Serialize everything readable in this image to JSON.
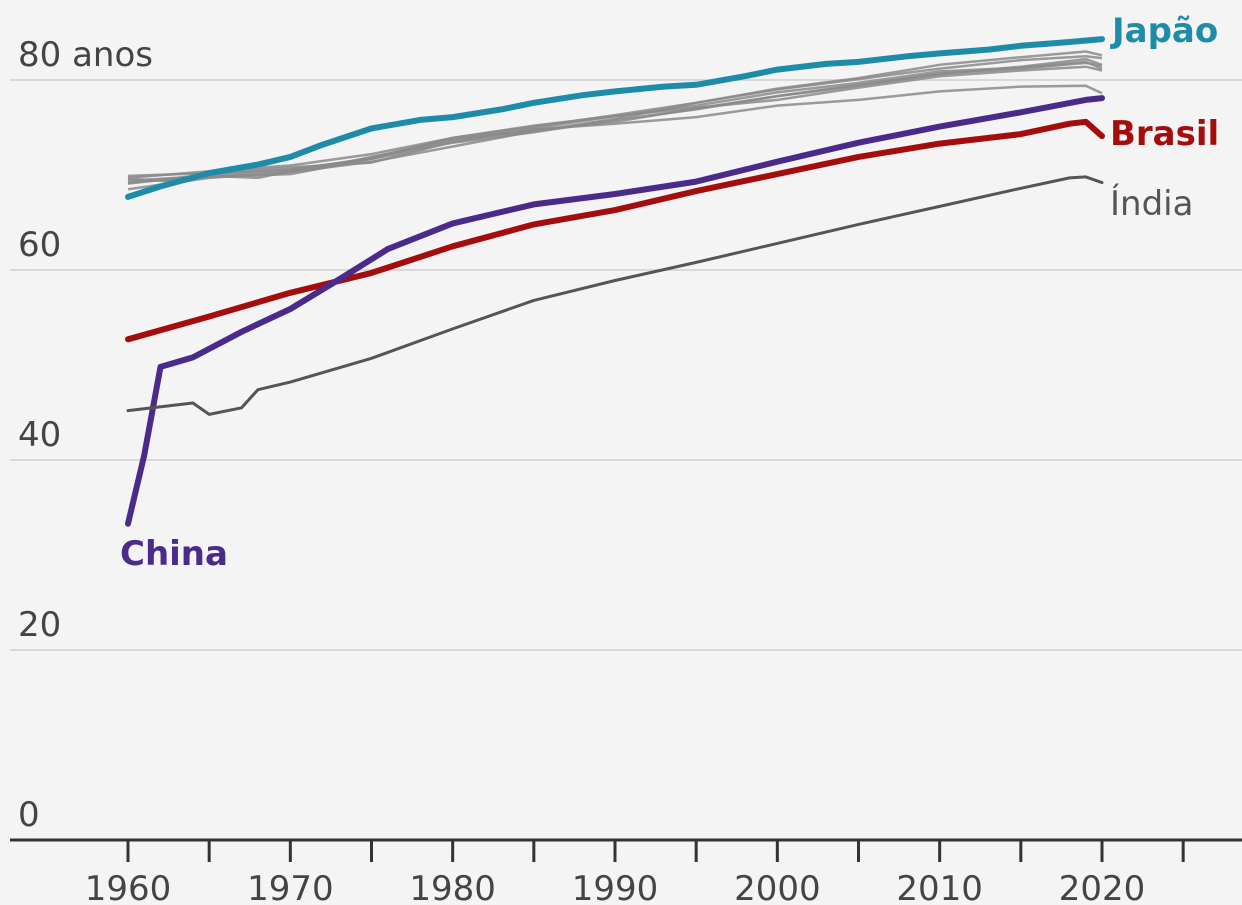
{
  "chart_data": {
    "type": "line",
    "title": "",
    "xlabel": "",
    "ylabel": "",
    "xlim": [
      1960,
      2020
    ],
    "ylim": [
      0,
      84
    ],
    "grid": true,
    "x_ticks": [
      "1960",
      "1970",
      "1980",
      "1990",
      "2000",
      "2010",
      "2020"
    ],
    "y_ticks": [
      {
        "value": 0,
        "label": "0"
      },
      {
        "value": 20,
        "label": "20"
      },
      {
        "value": 40,
        "label": "40"
      },
      {
        "value": 60,
        "label": "60"
      },
      {
        "value": 80,
        "label": "80 anos"
      }
    ],
    "highlight_series": [
      {
        "name": "Japão",
        "color": "#1e8ca8",
        "bold": true,
        "x": [
          1960,
          1962,
          1965,
          1968,
          1970,
          1972,
          1975,
          1978,
          1980,
          1983,
          1985,
          1988,
          1990,
          1993,
          1995,
          1998,
          2000,
          2003,
          2005,
          2008,
          2010,
          2013,
          2015,
          2018,
          2020
        ],
        "y": [
          67.7,
          68.8,
          70.2,
          71.1,
          71.9,
          73.2,
          74.9,
          75.8,
          76.1,
          76.9,
          77.6,
          78.4,
          78.8,
          79.3,
          79.5,
          80.4,
          81.1,
          81.7,
          81.9,
          82.5,
          82.8,
          83.2,
          83.6,
          84.0,
          84.3
        ]
      },
      {
        "name": "Brasil",
        "color": "#a50d0d",
        "bold": true,
        "x": [
          1960,
          1965,
          1970,
          1975,
          1980,
          1985,
          1990,
          1995,
          2000,
          2005,
          2010,
          2015,
          2018,
          2019,
          2020
        ],
        "y": [
          52.7,
          55.1,
          57.6,
          59.7,
          62.5,
          64.8,
          66.3,
          68.3,
          70.1,
          71.9,
          73.3,
          74.3,
          75.4,
          75.6,
          74.1
        ]
      },
      {
        "name": "China",
        "color": "#4a2a8a",
        "bold": true,
        "x": [
          1960,
          1961,
          1962,
          1964,
          1967,
          1970,
          1973,
          1976,
          1980,
          1985,
          1990,
          1995,
          2000,
          2005,
          2010,
          2015,
          2019,
          2020
        ],
        "y": [
          33.3,
          40.5,
          49.8,
          50.8,
          53.5,
          55.9,
          59.0,
          62.2,
          64.9,
          66.9,
          68.0,
          69.3,
          71.4,
          73.4,
          75.1,
          76.6,
          77.9,
          78.1
        ]
      },
      {
        "name": "Índia",
        "color": "#555555",
        "bold": false,
        "x": [
          1960,
          1964,
          1965,
          1967,
          1968,
          1970,
          1975,
          1980,
          1985,
          1990,
          1995,
          2000,
          2005,
          2010,
          2015,
          2018,
          2019,
          2020
        ],
        "y": [
          45.2,
          46.0,
          44.8,
          45.5,
          47.4,
          48.2,
          50.7,
          53.8,
          56.8,
          58.9,
          60.8,
          62.8,
          64.8,
          66.7,
          68.6,
          69.7,
          69.8,
          69.2
        ]
      }
    ],
    "background_series_color": "#8a8a8a",
    "background_series": [
      {
        "x": [
          1960,
          1965,
          1970,
          1975,
          1980,
          1985,
          1990,
          1995,
          2000,
          2005,
          2010,
          2015,
          2019,
          2020
        ],
        "y": [
          69.9,
          70.2,
          70.8,
          71.3,
          73.5,
          74.8,
          75.4,
          76.1,
          77.3,
          77.9,
          78.8,
          79.3,
          79.4,
          78.6
        ]
      },
      {
        "x": [
          1960,
          1965,
          1970,
          1975,
          1980,
          1985,
          1990,
          1995,
          2000,
          2005,
          2010,
          2015,
          2019,
          2020
        ],
        "y": [
          69.2,
          69.8,
          70.1,
          71.7,
          73.8,
          74.7,
          75.6,
          77.0,
          78.3,
          79.4,
          80.7,
          81.2,
          81.8,
          81.5
        ]
      },
      {
        "x": [
          1960,
          1965,
          1970,
          1975,
          1980,
          1985,
          1990,
          1995,
          2000,
          2005,
          2010,
          2015,
          2019,
          2020
        ],
        "y": [
          69.4,
          69.9,
          70.5,
          71.8,
          73.9,
          75.2,
          76.2,
          77.1,
          77.9,
          79.2,
          80.4,
          81.0,
          81.4,
          81.0
        ]
      },
      {
        "x": [
          1960,
          1965,
          1970,
          1975,
          1980,
          1985,
          1990,
          1995,
          2000,
          2005,
          2010,
          2015,
          2019,
          2020
        ],
        "y": [
          69.7,
          70.4,
          71.0,
          72.2,
          73.9,
          75.1,
          76.3,
          77.6,
          79.0,
          80.1,
          81.2,
          82.1,
          82.5,
          82.3
        ]
      },
      {
        "x": [
          1960,
          1965,
          1970,
          1975,
          1980,
          1985,
          1990,
          1995,
          2000,
          2005,
          2010,
          2015,
          2019,
          2020
        ],
        "y": [
          68.5,
          69.7,
          70.3,
          71.4,
          73.0,
          74.6,
          75.9,
          77.6,
          79.1,
          80.2,
          81.6,
          82.4,
          83.0,
          82.6
        ]
      },
      {
        "x": [
          1960,
          1965,
          1970,
          1975,
          1980,
          1985,
          1990,
          1995,
          2000,
          2005,
          2010,
          2015,
          2019,
          2020
        ],
        "y": [
          69.1,
          70.1,
          70.6,
          71.7,
          73.4,
          74.5,
          75.8,
          76.9,
          78.3,
          79.5,
          80.6,
          81.4,
          82.2,
          81.6
        ]
      },
      {
        "x": [
          1960,
          1963,
          1965,
          1968,
          1970,
          1972,
          1975,
          1980,
          1985,
          1990,
          1995,
          2000,
          2005,
          2010,
          2015,
          2019,
          2020
        ],
        "y": [
          69.6,
          69.3,
          69.9,
          69.7,
          70.4,
          70.8,
          71.9,
          73.6,
          74.9,
          76.2,
          77.3,
          78.7,
          79.7,
          80.9,
          81.3,
          81.9,
          81.2
        ]
      }
    ]
  }
}
